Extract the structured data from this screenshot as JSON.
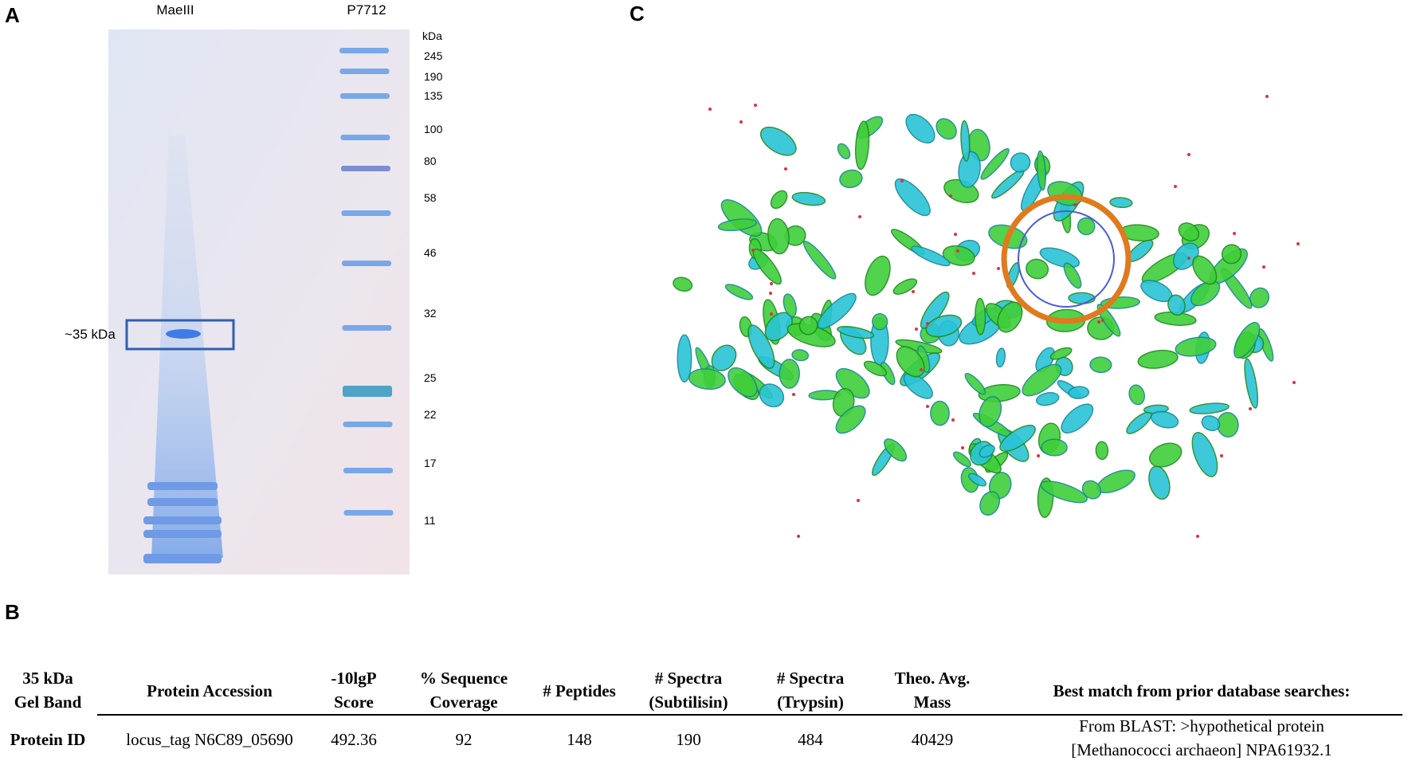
{
  "panels": {
    "A": {
      "label": "A",
      "lanes": [
        "MaeIII",
        "P7712"
      ],
      "unit": "kDa",
      "markers": [
        245,
        190,
        135,
        100,
        80,
        58,
        46,
        32,
        25,
        22,
        17,
        11
      ],
      "band_note": "~35 kDa"
    },
    "B": {
      "label": "B",
      "table": {
        "header": [
          "35 kDa\nGel Band",
          "Protein Accession",
          "-10lgP\nScore",
          "% Sequence\nCoverage",
          "# Peptides",
          "# Spectra\n(Subtilisin)",
          "# Spectra\n(Trypsin)",
          "Theo. Avg.\nMass",
          "Best match from prior database searches:"
        ],
        "rows": [
          [
            "Protein ID",
            "locus_tag N6C89_05690",
            492.36,
            92,
            148,
            190,
            484,
            40429,
            "From BLAST: >hypothetical protein\n[Methanococci archaeon] NPA61932.1"
          ]
        ]
      }
    },
    "C": {
      "label": "C"
    }
  }
}
